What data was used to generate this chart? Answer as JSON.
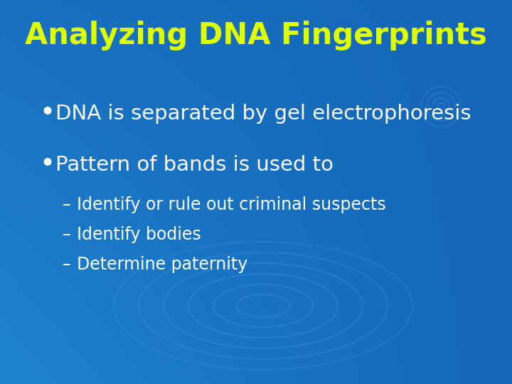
{
  "title": "Analyzing DNA Fingerprints",
  "title_color": "#DDFF00",
  "title_fontsize": 30,
  "bg_color": "#1a7acc",
  "bg_color_tl": [
    0.1,
    0.44,
    0.75
  ],
  "bg_color_tr": [
    0.08,
    0.4,
    0.72
  ],
  "bg_color_bl": [
    0.12,
    0.52,
    0.82
  ],
  "bg_color_br": [
    0.08,
    0.4,
    0.72
  ],
  "bullet1": "DNA is separated by gel electrophoresis",
  "bullet2": "Pattern of bands is used to",
  "sub1": "Identify or rule out criminal suspects",
  "sub2": "Identify bodies",
  "sub3": "Determine paternity",
  "text_color": "#ffffff",
  "bullet_fontsize": 21,
  "sub_fontsize": 17
}
